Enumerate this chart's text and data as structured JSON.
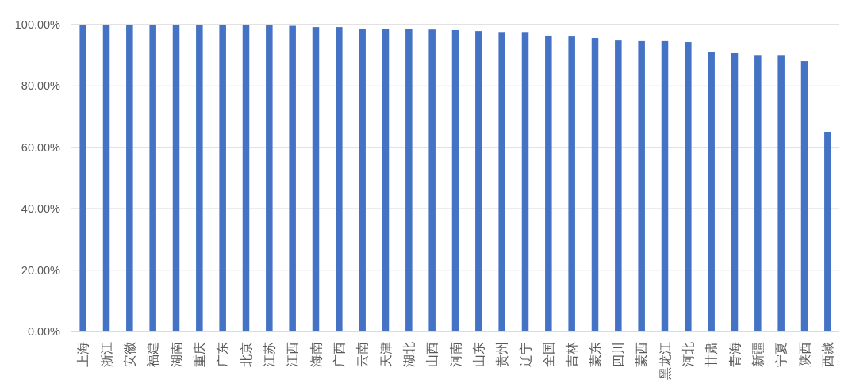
{
  "chart_data": {
    "type": "bar",
    "categories": [
      "上海",
      "浙江",
      "安徽",
      "福建",
      "湖南",
      "重庆",
      "广东",
      "北京",
      "江苏",
      "江西",
      "海南",
      "广西",
      "云南",
      "天津",
      "湖北",
      "山西",
      "河南",
      "山东",
      "贵州",
      "辽宁",
      "全国",
      "吉林",
      "蒙东",
      "四川",
      "蒙西",
      "黑龙江",
      "河北",
      "甘肃",
      "青海",
      "新疆",
      "宁夏",
      "陕西",
      "西藏"
    ],
    "values": [
      100,
      100,
      100,
      100,
      100,
      100,
      100,
      100,
      100,
      99.6,
      99.2,
      99.2,
      98.7,
      98.7,
      98.7,
      98.4,
      98.2,
      97.9,
      97.6,
      97.6,
      96.4,
      96.1,
      95.6,
      94.8,
      94.6,
      94.6,
      94.3,
      91.2,
      90.7,
      90.1,
      90.1,
      88.1,
      65.1
    ],
    "color": "#4472c4",
    "ylim": [
      0,
      100
    ],
    "yticks": [
      {
        "value": 0,
        "label": "0.00%"
      },
      {
        "value": 20,
        "label": "20.00%"
      },
      {
        "value": 40,
        "label": "40.00%"
      },
      {
        "value": 60,
        "label": "60.00%"
      },
      {
        "value": 80,
        "label": "80.00%"
      },
      {
        "value": 100,
        "label": "100.00%"
      }
    ],
    "grid": "y"
  }
}
